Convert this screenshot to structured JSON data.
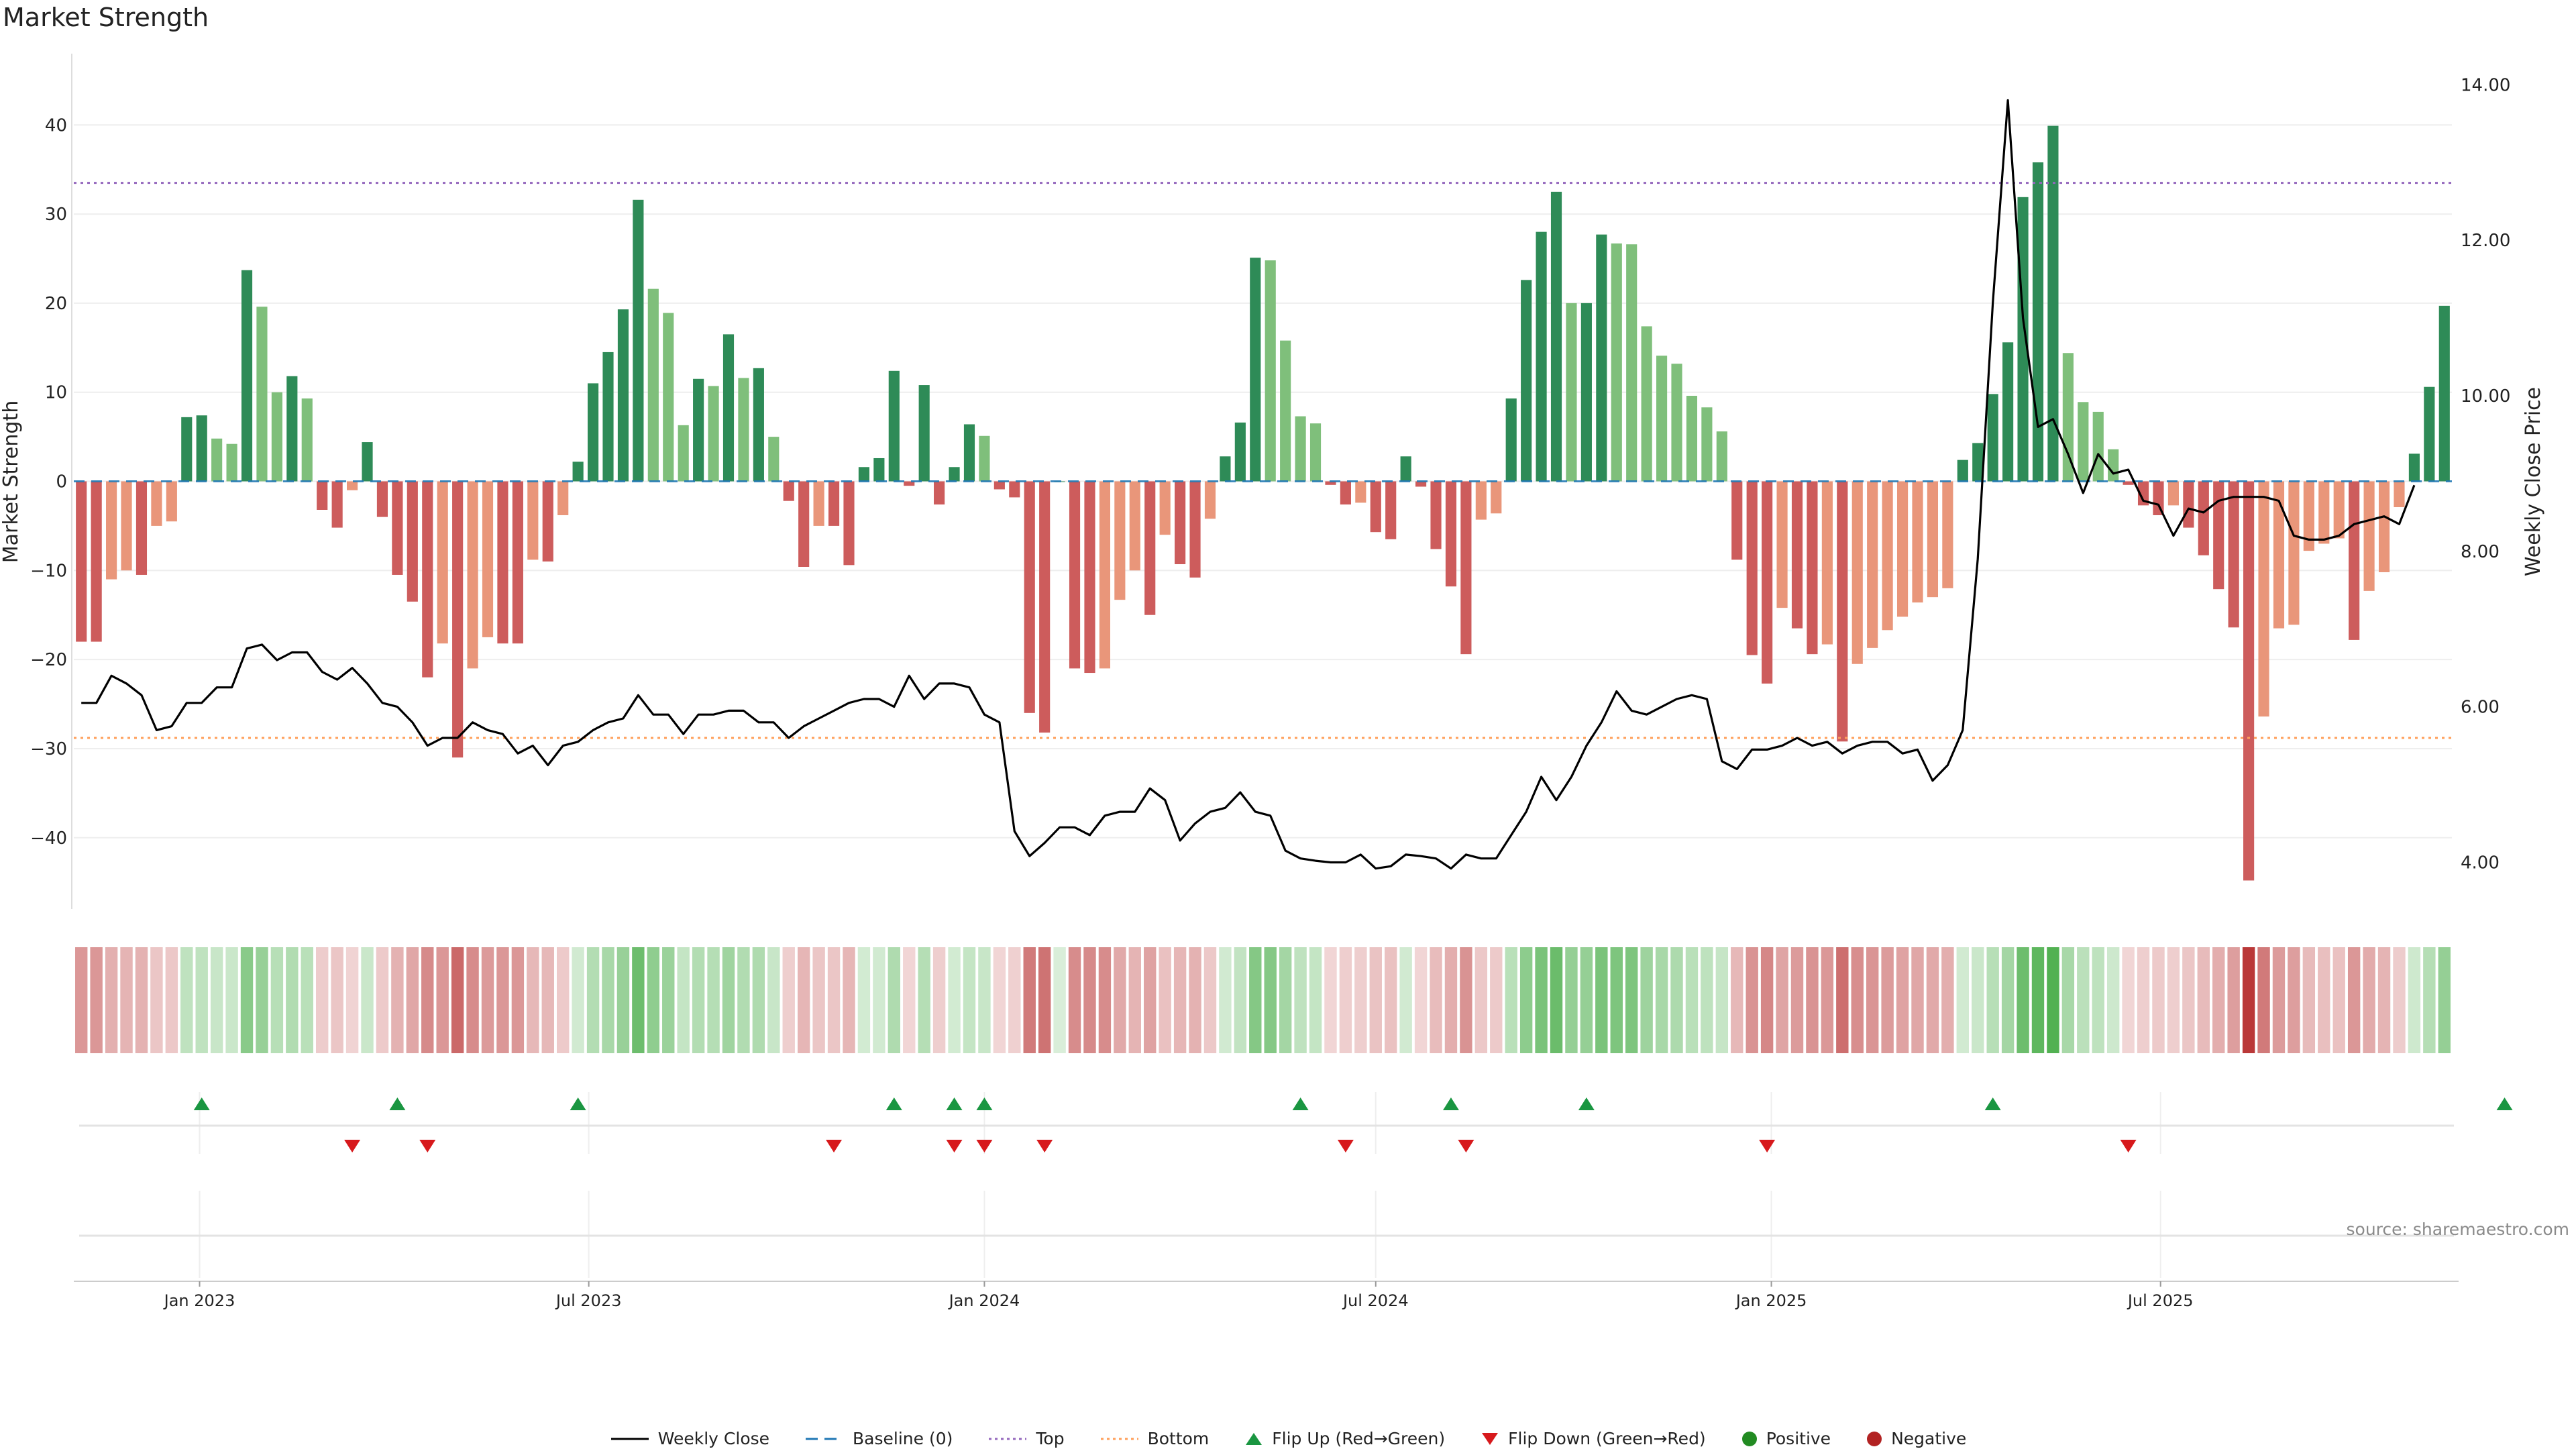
{
  "chart_data": {
    "type": "bar",
    "title": "Market Strength",
    "ylabel_left": "Market Strength",
    "ylabel_right": "Weekly Close Price",
    "ylim_left": [
      -48,
      48
    ],
    "ylim_right": [
      3.4,
      14.4
    ],
    "yticks_left": [
      40,
      30,
      20,
      10,
      0,
      -10,
      -20,
      -30,
      -40
    ],
    "yticks_right": [
      "14.00",
      "12.00",
      "10.00",
      "8.00",
      "6.00",
      "4.00"
    ],
    "x_start": "2022-11-07",
    "x_tick_labels": [
      {
        "date": "2023-01-01",
        "label": "Jan 2023"
      },
      {
        "date": "2023-07-01",
        "label": "Jul 2023"
      },
      {
        "date": "2024-01-01",
        "label": "Jan 2024"
      },
      {
        "date": "2024-07-01",
        "label": "Jul 2024"
      },
      {
        "date": "2025-01-01",
        "label": "Jan 2025"
      },
      {
        "date": "2025-07-01",
        "label": "Jul 2025"
      }
    ],
    "top_level": 33.5,
    "bottom_level": -28.8,
    "strength": [
      -18,
      -18,
      -11,
      -10,
      -10.5,
      -5,
      -4.5,
      7.2,
      7.4,
      4.8,
      4.2,
      23.7,
      19.6,
      10,
      11.8,
      9.3,
      -3.2,
      -5.2,
      -1,
      4.4,
      -4,
      -10.5,
      -13.5,
      -22,
      -18.2,
      -31,
      -21,
      -17.5,
      -18.2,
      -18.2,
      -8.8,
      -9,
      -3.8,
      2.2,
      11,
      14.5,
      19.3,
      31.6,
      21.6,
      18.9,
      6.3,
      11.5,
      10.7,
      16.5,
      11.6,
      12.7,
      5,
      -2.2,
      -9.6,
      -5,
      -5,
      -9.4,
      1.6,
      2.6,
      12.4,
      -0.5,
      10.8,
      -2.6,
      1.6,
      6.4,
      5.1,
      -0.9,
      -1.8,
      -26,
      -28.2,
      0,
      -21,
      -21.5,
      -21,
      -13.3,
      -10,
      -15,
      -6,
      -9.3,
      -10.8,
      -4.2,
      2.8,
      6.6,
      25.1,
      24.8,
      15.8,
      7.3,
      6.5,
      -0.4,
      -2.6,
      -2.4,
      -5.7,
      -6.5,
      2.8,
      -0.6,
      -7.6,
      -11.8,
      -19.4,
      -4.3,
      -3.6,
      9.3,
      22.6,
      28,
      32.5,
      20,
      20,
      27.7,
      26.7,
      26.6,
      17.4,
      14.1,
      13.2,
      9.6,
      8.3,
      5.6,
      -8.8,
      -19.5,
      -22.7,
      -14.2,
      -16.5,
      -19.4,
      -18.3,
      -29.2,
      -20.5,
      -18.7,
      -16.7,
      -15.2,
      -13.6,
      -13,
      -12,
      2.4,
      4.3,
      9.8,
      15.6,
      31.9,
      35.8,
      39.9,
      14.4,
      8.9,
      7.8,
      3.6,
      -0.4,
      -2.7,
      -3.8,
      -2.7,
      -5.2,
      -8.3,
      -12.1,
      -16.4,
      -44.8,
      -26.4,
      -16.5,
      -16.1,
      -7.8,
      -7,
      -6.4,
      -17.8,
      -12.3,
      -10.2,
      -2.9,
      3.1,
      10.6,
      19.7
    ],
    "weekly_close": [
      6.05,
      6.05,
      6.4,
      6.3,
      6.15,
      5.7,
      5.75,
      6.05,
      6.05,
      6.25,
      6.25,
      6.75,
      6.8,
      6.6,
      6.7,
      6.7,
      6.45,
      6.35,
      6.5,
      6.3,
      6.05,
      6,
      5.8,
      5.5,
      5.6,
      5.6,
      5.8,
      5.7,
      5.65,
      5.4,
      5.5,
      5.25,
      5.5,
      5.55,
      5.7,
      5.8,
      5.85,
      6.15,
      5.9,
      5.9,
      5.65,
      5.9,
      5.9,
      5.95,
      5.95,
      5.8,
      5.8,
      5.6,
      5.75,
      5.85,
      5.95,
      6.05,
      6.1,
      6.1,
      6.0,
      6.4,
      6.1,
      6.3,
      6.3,
      6.25,
      5.9,
      5.8,
      4.4,
      4.08,
      4.25,
      4.45,
      4.45,
      4.35,
      4.6,
      4.65,
      4.65,
      4.95,
      4.8,
      4.28,
      4.5,
      4.65,
      4.7,
      4.9,
      4.65,
      4.6,
      4.15,
      4.05,
      4.02,
      4.0,
      4.0,
      4.1,
      3.92,
      3.95,
      4.1,
      4.08,
      4.05,
      3.92,
      4.1,
      4.05,
      4.05,
      4.35,
      4.65,
      5.1,
      4.8,
      5.1,
      5.5,
      5.8,
      6.2,
      5.95,
      5.9,
      6.0,
      6.1,
      6.15,
      6.1,
      5.3,
      5.2,
      5.45,
      5.45,
      5.5,
      5.6,
      5.5,
      5.55,
      5.4,
      5.5,
      5.55,
      5.55,
      5.4,
      5.45,
      5.05,
      5.25,
      5.7,
      7.9,
      11.2,
      13.8,
      11,
      9.6,
      9.7,
      9.25,
      8.75,
      9.25,
      9.0,
      9.05,
      8.65,
      8.6,
      8.2,
      8.55,
      8.5,
      8.65,
      8.7,
      8.7,
      8.7,
      8.65,
      8.2,
      8.15,
      8.15,
      8.2,
      8.35,
      8.4,
      8.45,
      8.35,
      8.85
    ],
    "flip_up_dates": [
      "2023-01-02",
      "2023-04-03",
      "2023-06-26",
      "2023-11-20",
      "2023-12-18",
      "2024-01-01",
      "2024-05-27",
      "2024-08-05",
      "2024-10-07",
      "2025-04-14",
      "2025-12-08"
    ],
    "flip_down_dates": [
      "2023-03-13",
      "2023-04-17",
      "2023-10-23",
      "2023-12-18",
      "2024-01-01",
      "2024-01-29",
      "2024-06-17",
      "2024-08-12",
      "2024-12-30",
      "2025-06-16"
    ],
    "source_note": "source: sharemaestro.com",
    "legend": [
      "Weekly Close",
      "Baseline (0)",
      "Top",
      "Bottom",
      "Flip Up (Red→Green)",
      "Flip Down (Green→Red)",
      "Positive",
      "Negative"
    ]
  },
  "colors": {
    "pos_strong": "#2e8b57",
    "pos_weak": "#7fbf7b",
    "neg_strong": "#cd5c5c",
    "neg_weak": "#e9967a",
    "line": "#000000",
    "top": "#9467bd",
    "bottom": "#ff9f5a",
    "baseline": "#1f77b4",
    "flip_up": "#1a9641",
    "flip_down": "#d7191c",
    "positive_dot": "#228b22",
    "negative_dot": "#b22222"
  }
}
